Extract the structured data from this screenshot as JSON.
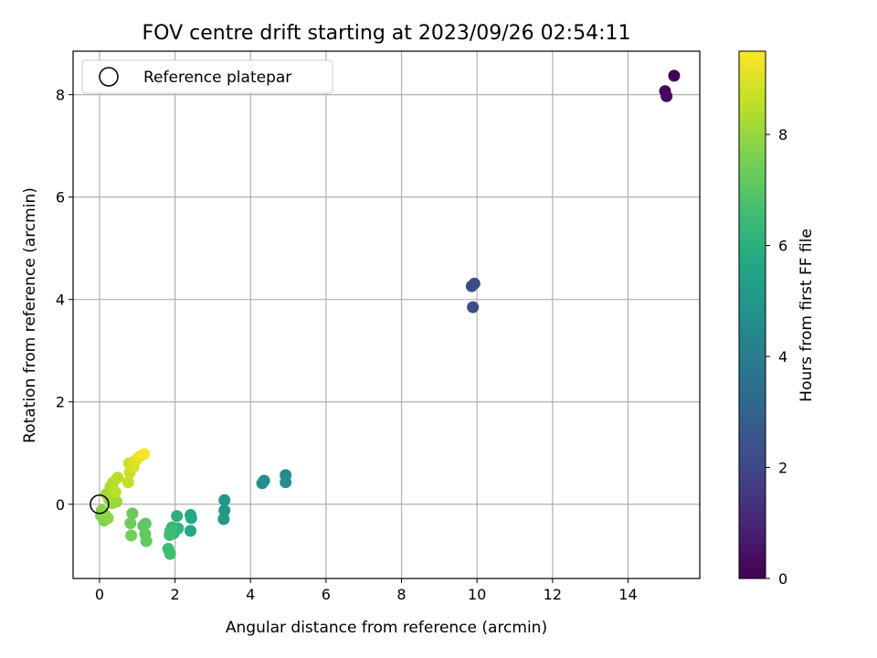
{
  "chart_data": {
    "type": "scatter",
    "title": "FOV centre drift starting at 2023/09/26 02:54:11",
    "xlabel": "Angular distance from reference (arcmin)",
    "ylabel": "Rotation from reference (arcmin)",
    "xlim": [
      -0.7,
      15.9
    ],
    "ylim": [
      -1.45,
      8.85
    ],
    "xticks": [
      0,
      2,
      4,
      6,
      8,
      10,
      12,
      14
    ],
    "yticks": [
      0,
      2,
      4,
      6,
      8
    ],
    "grid": true,
    "legend": {
      "position": "upper-left",
      "entries": [
        "Reference platepar"
      ]
    },
    "reference_point": {
      "x": 0,
      "y": 0,
      "label": "Reference platepar"
    },
    "colorbar": {
      "label": "Hours from first FF file",
      "range": [
        0,
        9.5
      ],
      "ticks": [
        0,
        2,
        4,
        6,
        8
      ],
      "colormap": "viridis"
    },
    "points": [
      {
        "x": 15.22,
        "y": 8.37,
        "c": 0.05
      },
      {
        "x": 14.98,
        "y": 8.07,
        "c": 0.15
      },
      {
        "x": 15.02,
        "y": 7.97,
        "c": 0.25
      },
      {
        "x": 9.93,
        "y": 4.31,
        "c": 2.1
      },
      {
        "x": 9.86,
        "y": 4.26,
        "c": 2.15
      },
      {
        "x": 9.89,
        "y": 3.85,
        "c": 2.2
      },
      {
        "x": 4.93,
        "y": 0.57,
        "c": 4.5
      },
      {
        "x": 4.93,
        "y": 0.43,
        "c": 4.55
      },
      {
        "x": 4.36,
        "y": 0.46,
        "c": 4.6
      },
      {
        "x": 4.31,
        "y": 0.41,
        "c": 4.65
      },
      {
        "x": 3.31,
        "y": 0.08,
        "c": 5.0
      },
      {
        "x": 3.31,
        "y": -0.12,
        "c": 5.05
      },
      {
        "x": 3.29,
        "y": -0.29,
        "c": 5.1
      },
      {
        "x": 2.41,
        "y": -0.21,
        "c": 5.6
      },
      {
        "x": 2.43,
        "y": -0.27,
        "c": 5.65
      },
      {
        "x": 2.41,
        "y": -0.52,
        "c": 5.7
      },
      {
        "x": 2.05,
        "y": -0.23,
        "c": 6.0
      },
      {
        "x": 2.08,
        "y": -0.47,
        "c": 6.1
      },
      {
        "x": 2.01,
        "y": -0.51,
        "c": 6.2
      },
      {
        "x": 1.96,
        "y": -0.57,
        "c": 6.3
      },
      {
        "x": 1.92,
        "y": -0.45,
        "c": 6.35
      },
      {
        "x": 1.87,
        "y": -0.53,
        "c": 6.45
      },
      {
        "x": 1.86,
        "y": -0.6,
        "c": 6.5
      },
      {
        "x": 1.82,
        "y": -0.87,
        "c": 6.55
      },
      {
        "x": 1.87,
        "y": -0.97,
        "c": 6.6
      },
      {
        "x": 1.22,
        "y": -0.38,
        "c": 7.0
      },
      {
        "x": 1.16,
        "y": -0.42,
        "c": 7.1
      },
      {
        "x": 1.21,
        "y": -0.58,
        "c": 7.15
      },
      {
        "x": 1.24,
        "y": -0.72,
        "c": 7.2
      },
      {
        "x": 0.87,
        "y": -0.18,
        "c": 7.3
      },
      {
        "x": 0.82,
        "y": -0.37,
        "c": 7.4
      },
      {
        "x": 0.84,
        "y": -0.61,
        "c": 7.45
      },
      {
        "x": 0.12,
        "y": -0.32,
        "c": 7.6
      },
      {
        "x": 0.04,
        "y": -0.22,
        "c": 7.7
      },
      {
        "x": 0.06,
        "y": -0.12,
        "c": 7.75
      },
      {
        "x": 0.15,
        "y": -0.21,
        "c": 7.8
      },
      {
        "x": 0.22,
        "y": -0.27,
        "c": 7.9
      },
      {
        "x": 0.33,
        "y": 0.02,
        "c": 8.0
      },
      {
        "x": 0.45,
        "y": 0.05,
        "c": 8.05
      },
      {
        "x": 0.25,
        "y": 0.1,
        "c": 8.1
      },
      {
        "x": 0.18,
        "y": 0.2,
        "c": 8.2
      },
      {
        "x": 0.29,
        "y": 0.34,
        "c": 8.3
      },
      {
        "x": 0.36,
        "y": 0.43,
        "c": 8.4
      },
      {
        "x": 0.48,
        "y": 0.52,
        "c": 8.5
      },
      {
        "x": 0.42,
        "y": 0.24,
        "c": 8.55
      },
      {
        "x": 0.76,
        "y": 0.43,
        "c": 8.65
      },
      {
        "x": 0.8,
        "y": 0.62,
        "c": 8.7
      },
      {
        "x": 0.78,
        "y": 0.8,
        "c": 8.8
      },
      {
        "x": 0.9,
        "y": 0.73,
        "c": 8.9
      },
      {
        "x": 0.96,
        "y": 0.86,
        "c": 9.0
      },
      {
        "x": 1.06,
        "y": 0.93,
        "c": 9.2
      },
      {
        "x": 1.18,
        "y": 0.98,
        "c": 9.4
      }
    ]
  }
}
